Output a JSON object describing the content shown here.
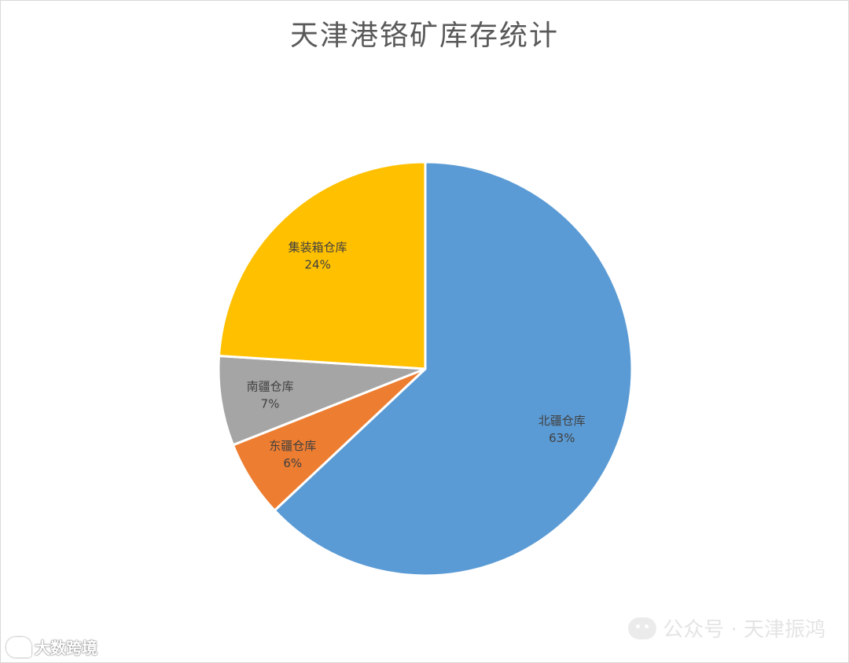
{
  "chart_data": {
    "type": "pie",
    "title": "天津港铬矿库存统计",
    "start_angle_deg": 0,
    "direction": "clockwise",
    "slices": [
      {
        "label": "北疆仓库",
        "value": 63,
        "percent_label": "63%",
        "color": "#5B9BD5"
      },
      {
        "label": "东疆仓库",
        "value": 6,
        "percent_label": "6%",
        "color": "#ED7D31"
      },
      {
        "label": "南疆仓库",
        "value": 7,
        "percent_label": "7%",
        "color": "#A5A5A5"
      },
      {
        "label": "集装箱仓库",
        "value": 24,
        "percent_label": "24%",
        "color": "#FFC000"
      }
    ]
  },
  "watermarks": {
    "bottom_left": "大数跨境",
    "bottom_right": "公众号 · 天津振鸿"
  }
}
